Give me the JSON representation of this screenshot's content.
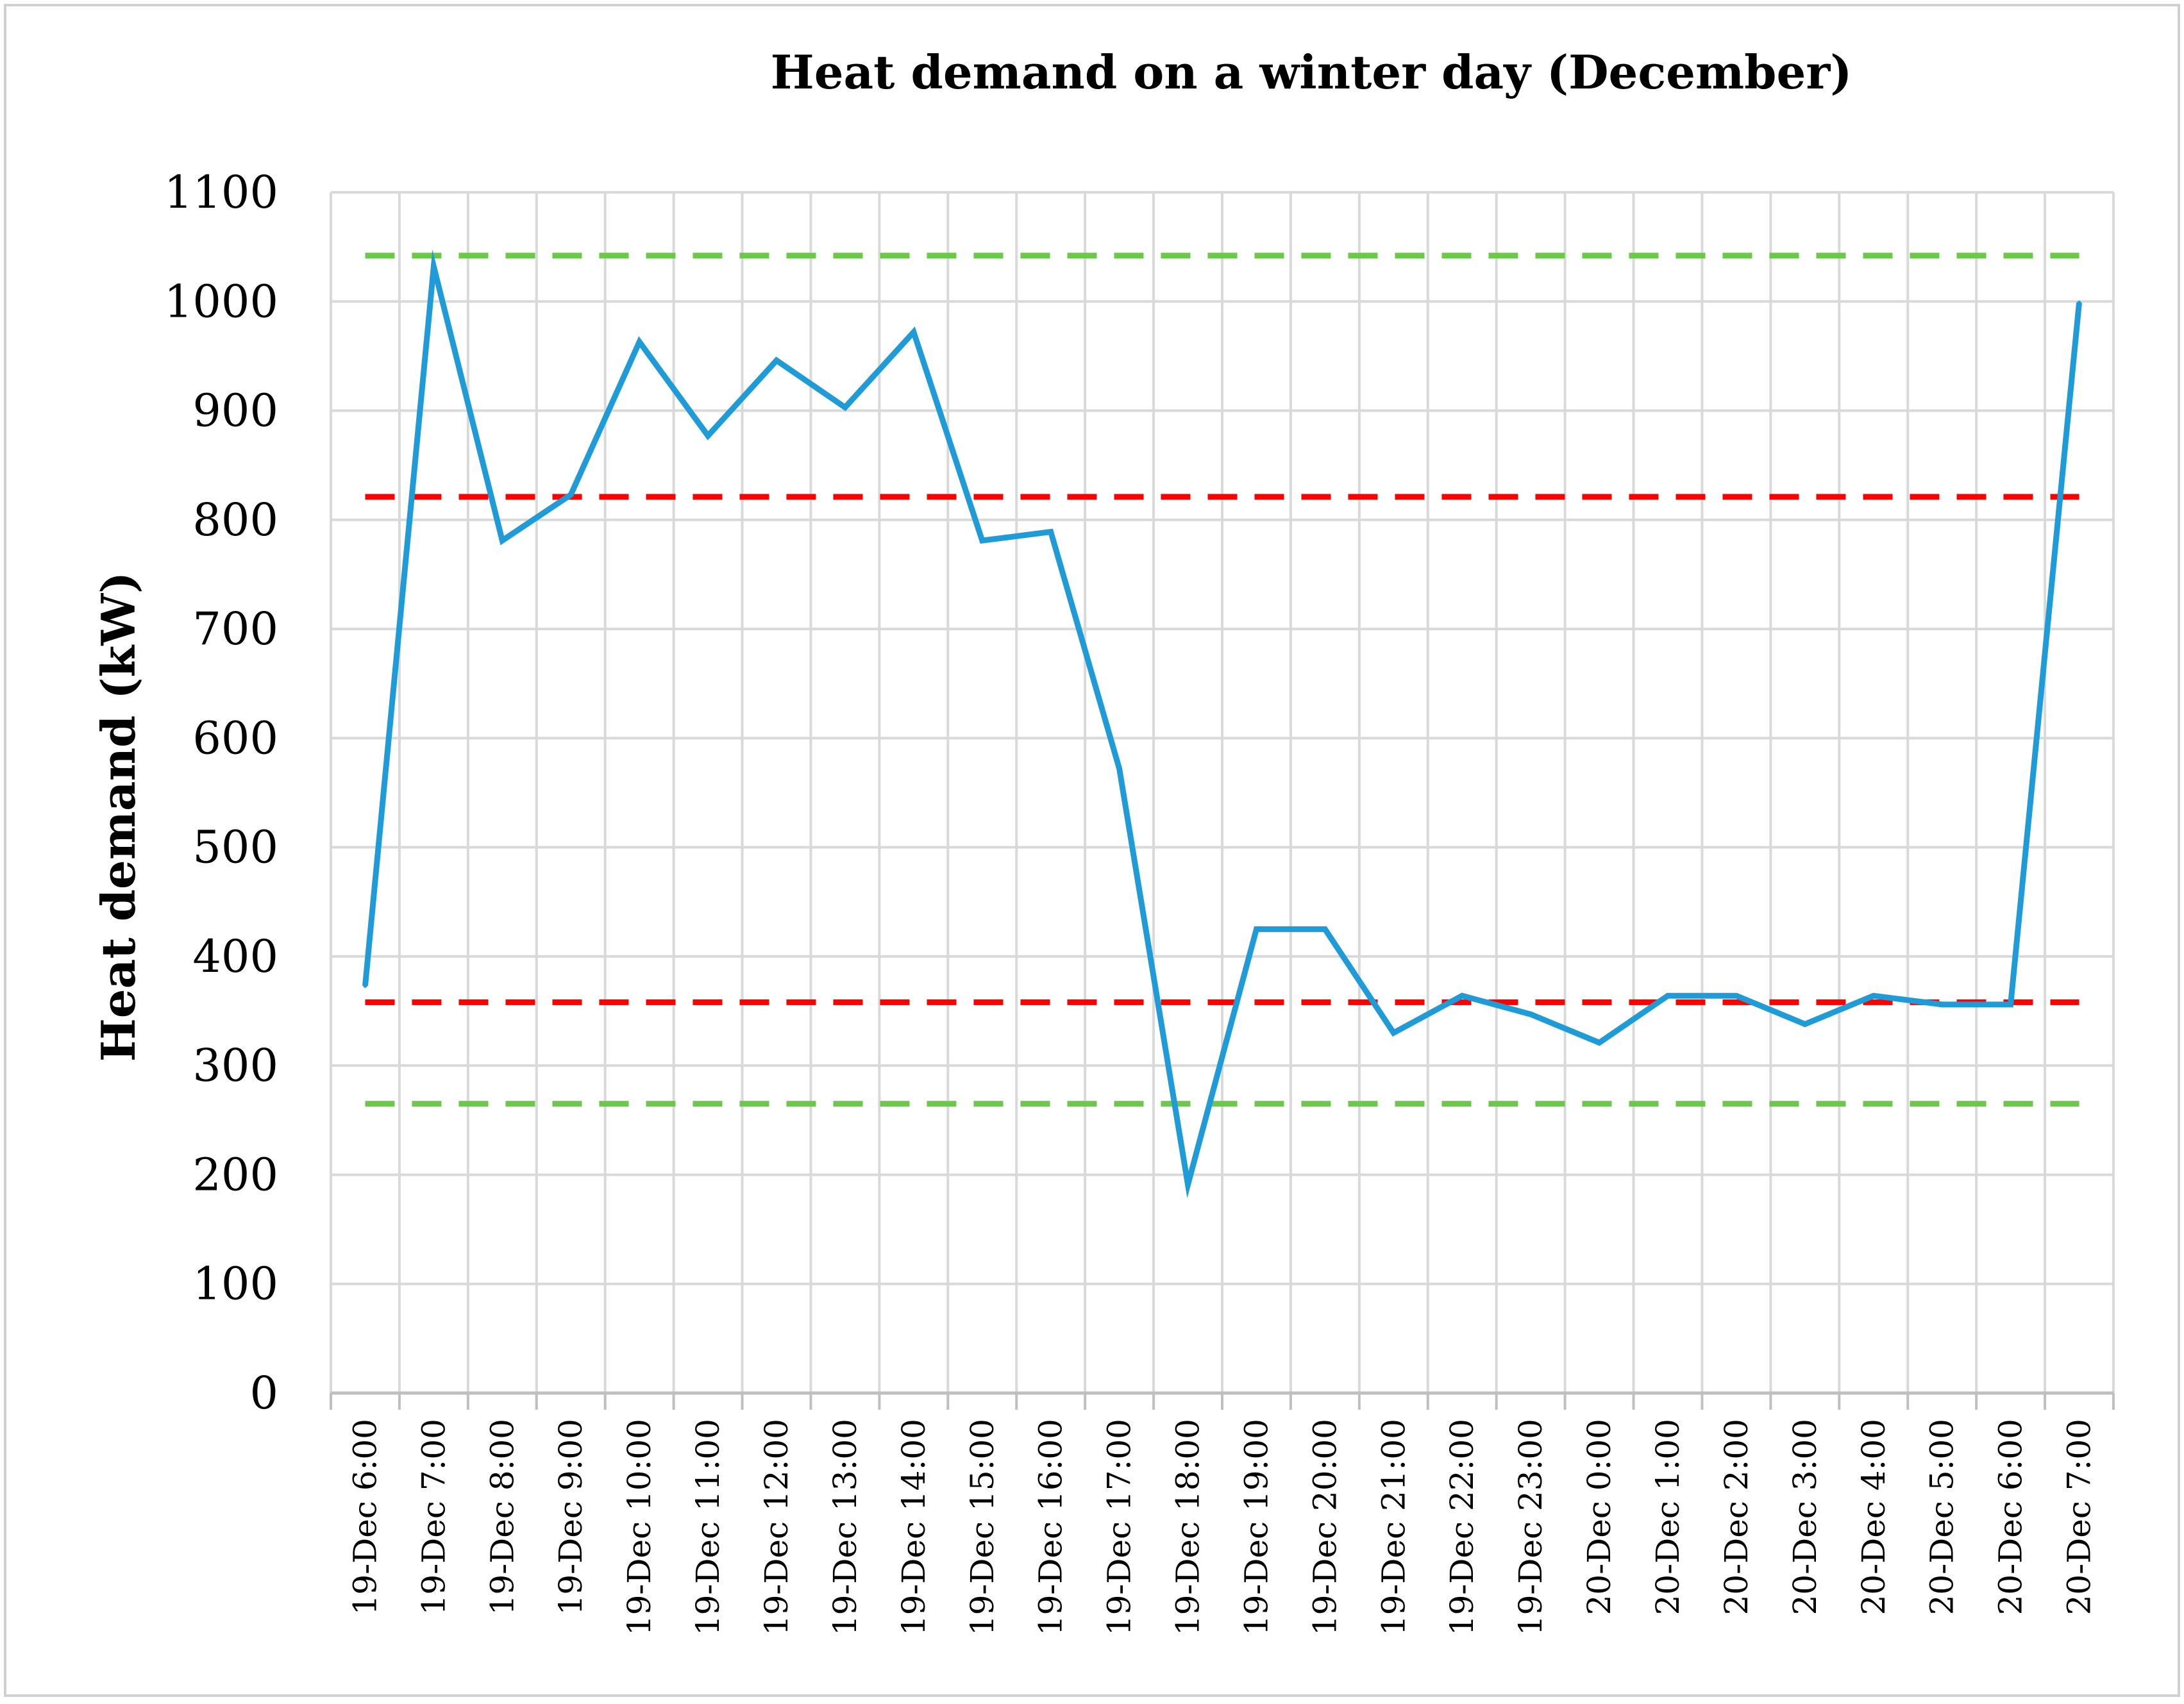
{
  "chart_data": {
    "type": "line",
    "title": "Heat demand on a winter day (December)",
    "xlabel": "",
    "ylabel": "Heat demand (kW)",
    "ylim": [
      0,
      1100
    ],
    "yticks": [
      0,
      100,
      200,
      300,
      400,
      500,
      600,
      700,
      800,
      900,
      1000,
      1100
    ],
    "grid": true,
    "legend": "none",
    "categories": [
      "19-Dec 6:00",
      "19-Dec 7:00",
      "19-Dec 8:00",
      "19-Dec 9:00",
      "19-Dec 10:00",
      "19-Dec 11:00",
      "19-Dec 12:00",
      "19-Dec 13:00",
      "19-Dec 14:00",
      "19-Dec 15:00",
      "19-Dec 16:00",
      "19-Dec 17:00",
      "19-Dec 18:00",
      "19-Dec 19:00",
      "19-Dec 20:00",
      "19-Dec 21:00",
      "19-Dec 22:00",
      "19-Dec 23:00",
      "20-Dec 0:00",
      "20-Dec 1:00",
      "20-Dec 2:00",
      "20-Dec 3:00",
      "20-Dec 4:00",
      "20-Dec 5:00",
      "20-Dec 6:00",
      "20-Dec 7:00"
    ],
    "series": [
      {
        "name": "Heat demand",
        "color": "#1f9bd7",
        "values": [
          373,
          1032,
          781,
          823,
          963,
          877,
          946,
          903,
          972,
          781,
          789,
          572,
          191,
          425,
          425,
          330,
          364,
          347,
          321,
          364,
          364,
          338,
          364,
          356,
          356,
          999
        ]
      }
    ],
    "reference_lines": [
      {
        "name": "upper-green-limit",
        "value": 1042,
        "color": "#6cc84a",
        "x_from": 0,
        "x_to": 25
      },
      {
        "name": "upper-red-limit",
        "value": 821,
        "color": "#ff0000",
        "x_from": 0,
        "x_to": 25
      },
      {
        "name": "lower-red-limit",
        "value": 358,
        "color": "#ff0000",
        "x_from": 0,
        "x_to": 25
      },
      {
        "name": "lower-green-limit",
        "value": 265,
        "color": "#6cc84a",
        "x_from": 0,
        "x_to": 25
      }
    ]
  }
}
